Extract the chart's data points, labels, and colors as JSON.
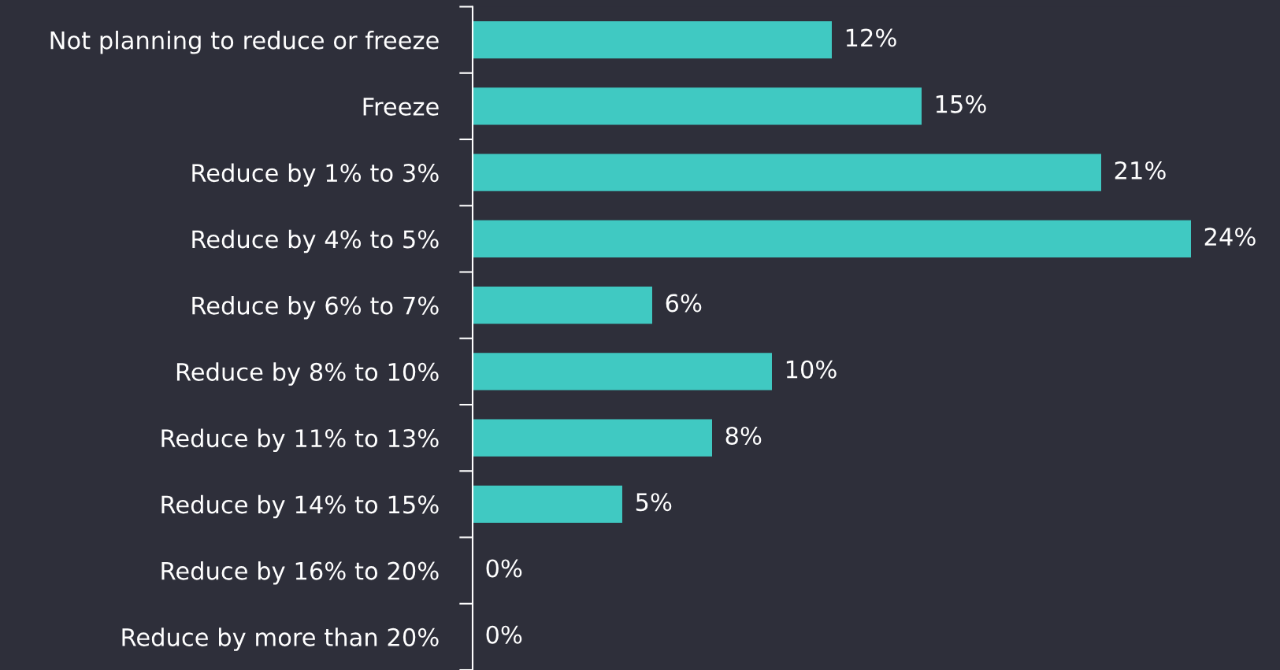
{
  "chart_data": {
    "type": "bar",
    "orientation": "horizontal",
    "categories": [
      "Not planning to reduce or freeze",
      "Freeze",
      "Reduce by 1% to 3%",
      "Reduce by 4% to 5%",
      "Reduce by 6% to 7%",
      "Reduce by 8% to 10%",
      "Reduce by 11% to 13%",
      "Reduce by 14% to 15%",
      "Reduce by 16% to 20%",
      "Reduce by more than 20%"
    ],
    "values": [
      12,
      15,
      21,
      24,
      6,
      10,
      8,
      5,
      0,
      0
    ],
    "value_labels": [
      "12%",
      "15%",
      "21%",
      "24%",
      "6%",
      "10%",
      "8%",
      "5%",
      "0%",
      "0%"
    ],
    "color": "#40c9c2",
    "grid": false,
    "legend": false
  }
}
